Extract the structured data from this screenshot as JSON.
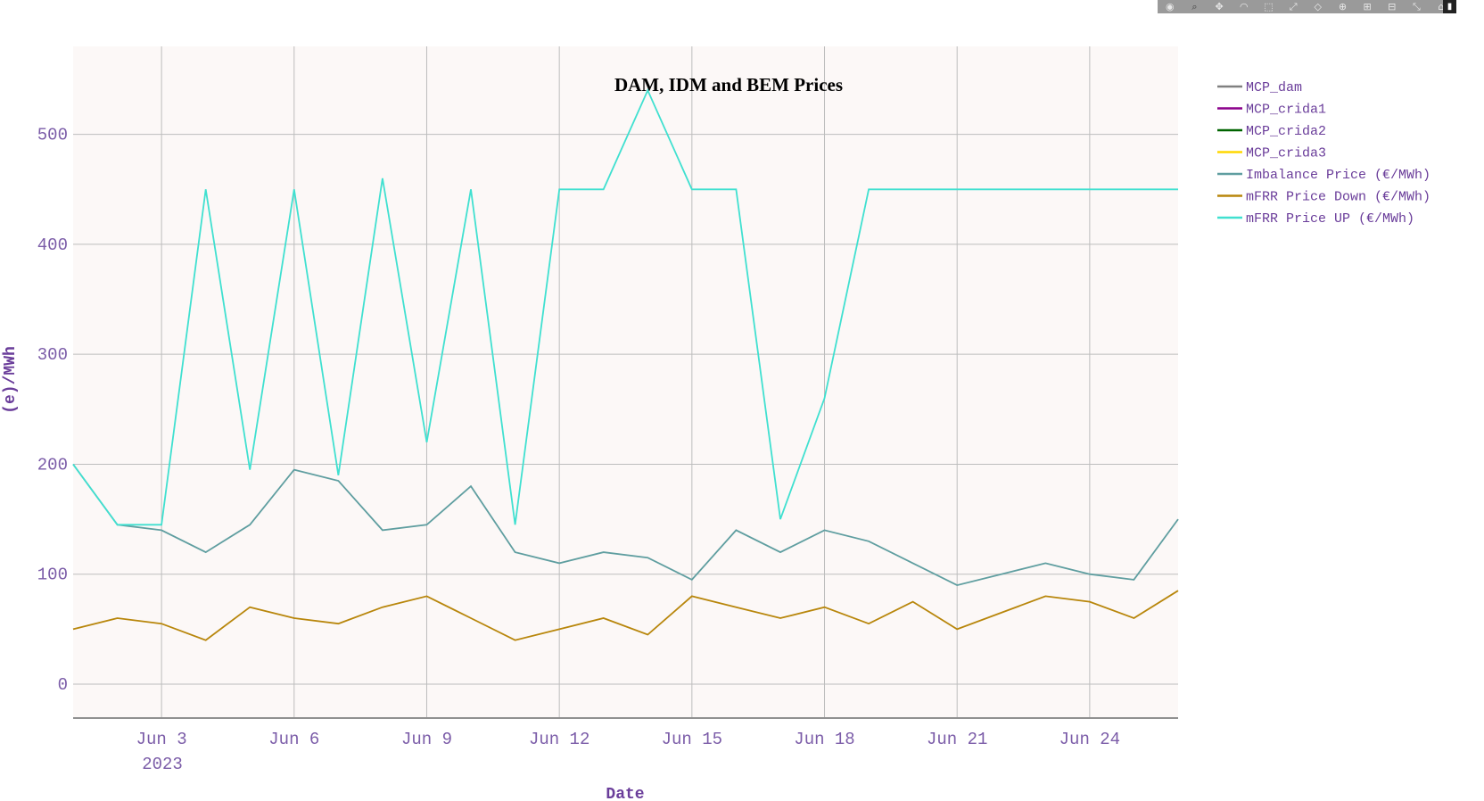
{
  "modebar": {
    "icons": [
      "camera-icon",
      "zoom-icon",
      "pan-icon",
      "lasso-icon",
      "select-icon",
      "spike-icon",
      "hover-closest-icon",
      "hover-compare-icon",
      "zoom-in-icon",
      "zoom-out-icon",
      "autoscale-icon",
      "reset-axes-icon",
      "plotly-logo-icon"
    ]
  },
  "chart_data": {
    "type": "line",
    "title": "DAM, IDM and BEM Prices",
    "xlabel": "Date",
    "ylabel": "(e)/MWh",
    "x_ticks": [
      "Jun 3",
      "Jun 6",
      "Jun 9",
      "Jun 12",
      "Jun 15",
      "Jun 18",
      "Jun 21",
      "Jun 24"
    ],
    "x_tick_dates": [
      "2023-06-03",
      "2023-06-06",
      "2023-06-09",
      "2023-06-12",
      "2023-06-15",
      "2023-06-18",
      "2023-06-21",
      "2023-06-24"
    ],
    "x_year_label": "2023",
    "xlim": [
      "2023-06-01",
      "2023-06-26"
    ],
    "y_ticks": [
      0,
      100,
      200,
      300,
      400,
      500
    ],
    "ylim": [
      -30,
      580
    ],
    "grid": true,
    "legend_position": "right",
    "series": [
      {
        "name": "MCP_dam",
        "color": "#808080",
        "values": []
      },
      {
        "name": "MCP_crida1",
        "color": "#8b008b",
        "values": []
      },
      {
        "name": "MCP_crida2",
        "color": "#006400",
        "values": []
      },
      {
        "name": "MCP_crida3",
        "color": "#ffd700",
        "values": []
      },
      {
        "name": "Imbalance Price  (€/MWh)",
        "color": "#5f9ea0",
        "x": [
          "2023-06-01",
          "2023-06-02",
          "2023-06-03",
          "2023-06-04",
          "2023-06-05",
          "2023-06-06",
          "2023-06-07",
          "2023-06-08",
          "2023-06-09",
          "2023-06-10",
          "2023-06-11",
          "2023-06-12",
          "2023-06-13",
          "2023-06-14",
          "2023-06-15",
          "2023-06-16",
          "2023-06-17",
          "2023-06-18",
          "2023-06-19",
          "2023-06-20",
          "2023-06-21",
          "2023-06-22",
          "2023-06-23",
          "2023-06-24",
          "2023-06-25",
          "2023-06-26"
        ],
        "values": [
          200,
          145,
          140,
          120,
          145,
          195,
          185,
          140,
          145,
          180,
          120,
          110,
          120,
          115,
          95,
          140,
          120,
          140,
          130,
          110,
          90,
          100,
          110,
          100,
          95,
          150
        ]
      },
      {
        "name": "mFRR Price Down (€/MWh)",
        "color": "#b8860b",
        "x": [
          "2023-06-01",
          "2023-06-02",
          "2023-06-03",
          "2023-06-04",
          "2023-06-05",
          "2023-06-06",
          "2023-06-07",
          "2023-06-08",
          "2023-06-09",
          "2023-06-10",
          "2023-06-11",
          "2023-06-12",
          "2023-06-13",
          "2023-06-14",
          "2023-06-15",
          "2023-06-16",
          "2023-06-17",
          "2023-06-18",
          "2023-06-19",
          "2023-06-20",
          "2023-06-21",
          "2023-06-22",
          "2023-06-23",
          "2023-06-24",
          "2023-06-25",
          "2023-06-26"
        ],
        "values": [
          50,
          60,
          55,
          40,
          70,
          60,
          55,
          70,
          80,
          60,
          40,
          50,
          60,
          45,
          80,
          70,
          60,
          70,
          55,
          75,
          50,
          65,
          80,
          75,
          60,
          85
        ]
      },
      {
        "name": "mFRR Price UP (€/MWh)",
        "color": "#40e0d0",
        "x": [
          "2023-06-01",
          "2023-06-02",
          "2023-06-03",
          "2023-06-04",
          "2023-06-05",
          "2023-06-06",
          "2023-06-07",
          "2023-06-08",
          "2023-06-09",
          "2023-06-10",
          "2023-06-11",
          "2023-06-12",
          "2023-06-13",
          "2023-06-14",
          "2023-06-15",
          "2023-06-16",
          "2023-06-17",
          "2023-06-18",
          "2023-06-19",
          "2023-06-20",
          "2023-06-21",
          "2023-06-22",
          "2023-06-23",
          "2023-06-24",
          "2023-06-25",
          "2023-06-26"
        ],
        "values": [
          200,
          145,
          145,
          450,
          195,
          450,
          190,
          460,
          220,
          450,
          145,
          450,
          450,
          540,
          450,
          450,
          150,
          260,
          450,
          450,
          450,
          450,
          450,
          450,
          450,
          450
        ]
      }
    ]
  }
}
